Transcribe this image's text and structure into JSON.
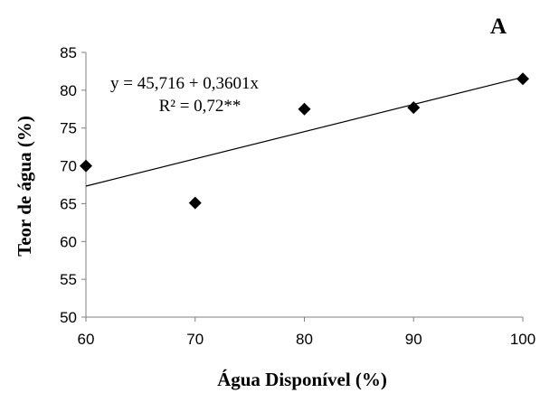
{
  "chart_data": {
    "type": "scatter",
    "panel_label": "A",
    "xlabel": "Água Disponível (%)",
    "ylabel": "Teor de água (%)",
    "xlim": [
      60,
      100
    ],
    "ylim": [
      50,
      85
    ],
    "xticks": [
      60,
      70,
      80,
      90,
      100
    ],
    "yticks": [
      50,
      55,
      60,
      65,
      70,
      75,
      80,
      85
    ],
    "grid": false,
    "points": [
      {
        "x": 60,
        "y": 70.0
      },
      {
        "x": 70,
        "y": 65.1
      },
      {
        "x": 80,
        "y": 77.5
      },
      {
        "x": 90,
        "y": 77.7
      },
      {
        "x": 100,
        "y": 81.5
      }
    ],
    "trendline": {
      "type": "linear",
      "intercept": 45.716,
      "slope": 0.3601
    },
    "annotations": {
      "equation": "y = 45,716 + 0,3601x",
      "r_squared": "R² = 0,72**"
    },
    "marker": "diamond",
    "colors": {
      "marker": "#000000",
      "line": "#000000",
      "axis": "#7f7f7f"
    }
  }
}
